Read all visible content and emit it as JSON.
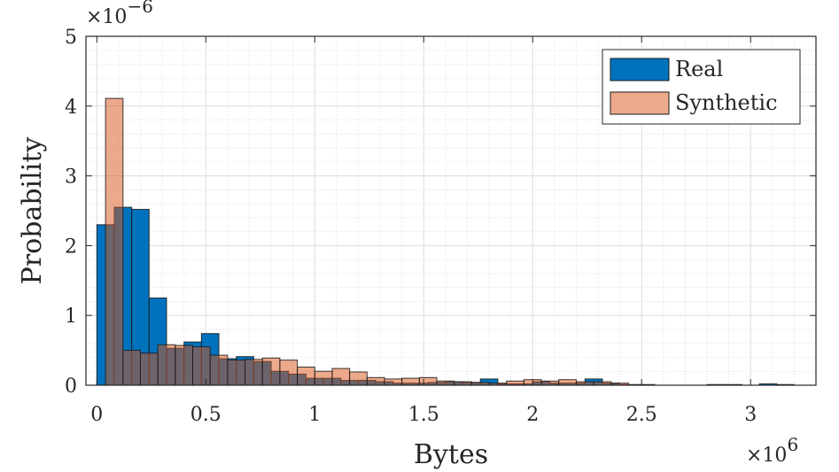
{
  "chart_data": {
    "type": "bar",
    "title": "",
    "xlabel": "Bytes",
    "ylabel": "Probability",
    "x_multiplier_label": "×10",
    "x_multiplier_exponent": "6",
    "y_multiplier_label": "×10",
    "y_multiplier_exponent": "−6",
    "xlim": [
      -0.05,
      3.3
    ],
    "ylim": [
      0,
      5
    ],
    "x_ticks": [
      0,
      0.5,
      1,
      1.5,
      2,
      2.5,
      3
    ],
    "x_tick_labels": [
      "0",
      "0.5",
      "1",
      "1.5",
      "2",
      "2.5",
      "3"
    ],
    "y_ticks": [
      0,
      1,
      2,
      3,
      4,
      5
    ],
    "y_tick_labels": [
      "0",
      "1",
      "2",
      "3",
      "4",
      "5"
    ],
    "grid": true,
    "minor_grid": true,
    "legend_position": "top-right",
    "series": [
      {
        "name": "Real",
        "color": "#0072BD",
        "bin_width": 0.08,
        "bin_centers": [
          0.04,
          0.12,
          0.2,
          0.28,
          0.36,
          0.44,
          0.52,
          0.6,
          0.68,
          0.76,
          0.84,
          0.92,
          1.0,
          1.08,
          1.16,
          1.24,
          1.32,
          1.4,
          1.48,
          1.56,
          1.64,
          1.72,
          1.8,
          1.88,
          1.96,
          2.04,
          2.12,
          2.2,
          2.28,
          2.36,
          2.44,
          2.52,
          2.6,
          2.68,
          2.76,
          2.84,
          2.92,
          3.0,
          3.08,
          3.16
        ],
        "values": [
          2.3,
          2.55,
          2.52,
          1.25,
          0.53,
          0.62,
          0.74,
          0.38,
          0.41,
          0.34,
          0.2,
          0.16,
          0.1,
          0.1,
          0.07,
          0.07,
          0.05,
          0.03,
          0.03,
          0.04,
          0.05,
          0.04,
          0.09,
          0.02,
          0.02,
          0.05,
          0.03,
          0.03,
          0.09,
          0.03,
          0.01,
          0.01,
          0.0,
          0.0,
          0.0,
          0.01,
          0.01,
          0.0,
          0.02,
          0.01
        ]
      },
      {
        "name": "Synthetic",
        "color": "#D95319",
        "bin_width": 0.08,
        "bin_centers": [
          0.08,
          0.16,
          0.24,
          0.32,
          0.4,
          0.48,
          0.56,
          0.64,
          0.72,
          0.8,
          0.88,
          0.96,
          1.04,
          1.12,
          1.2,
          1.28,
          1.36,
          1.44,
          1.52,
          1.6,
          1.68,
          1.76,
          1.84,
          1.92,
          2.0,
          2.08,
          2.16,
          2.24,
          2.32,
          2.4
        ],
        "values": [
          4.11,
          0.5,
          0.46,
          0.58,
          0.57,
          0.55,
          0.43,
          0.36,
          0.37,
          0.39,
          0.36,
          0.26,
          0.2,
          0.24,
          0.19,
          0.11,
          0.09,
          0.1,
          0.11,
          0.06,
          0.05,
          0.04,
          0.03,
          0.06,
          0.08,
          0.06,
          0.08,
          0.05,
          0.05,
          0.03
        ]
      }
    ]
  }
}
